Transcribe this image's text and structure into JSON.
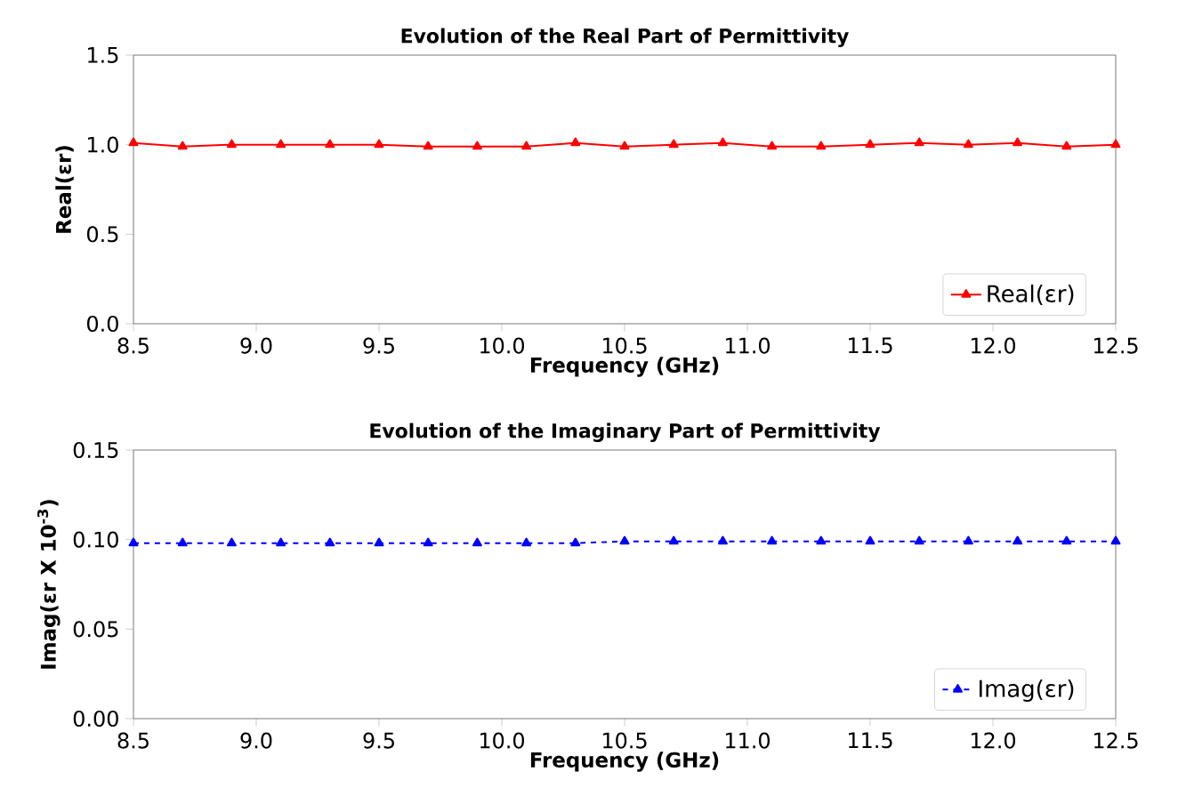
{
  "chart_data": [
    {
      "type": "line",
      "title": "Evolution of the Real Part of Permittivity",
      "xlabel": "Frequency (GHz)",
      "ylabel": "Real(εr)",
      "x": [
        8.5,
        8.7,
        8.9,
        9.1,
        9.3,
        9.5,
        9.7,
        9.9,
        10.1,
        10.3,
        10.5,
        10.7,
        10.9,
        11.1,
        11.3,
        11.5,
        11.7,
        11.9,
        12.1,
        12.3,
        12.5
      ],
      "series": [
        {
          "name": "Real(εr)",
          "color": "#ff0000",
          "values": [
            1.01,
            0.99,
            1.0,
            1.0,
            1.0,
            1.0,
            0.99,
            0.99,
            0.99,
            1.01,
            0.99,
            1.0,
            1.01,
            0.99,
            0.99,
            1.0,
            1.01,
            1.0,
            1.01,
            0.99,
            1.0
          ]
        }
      ],
      "marker": "triangle",
      "line_style": "solid",
      "legend": "bottom right",
      "xlim": [
        8.5,
        12.5
      ],
      "ylim": [
        0,
        1.5
      ],
      "xticks": [
        {
          "value": 8.5,
          "label": "8.5"
        },
        {
          "value": 9,
          "label": "9.0"
        },
        {
          "value": 9.5,
          "label": "9.5"
        },
        {
          "value": 10,
          "label": "10.0"
        },
        {
          "value": 10.5,
          "label": "10.5"
        },
        {
          "value": 11,
          "label": "11.0"
        },
        {
          "value": 11.5,
          "label": "11.5"
        },
        {
          "value": 12,
          "label": "12.0"
        },
        {
          "value": 12.5,
          "label": "12.5"
        }
      ],
      "yticks": [
        {
          "value": 0,
          "label": "0.0"
        },
        {
          "value": 0.5,
          "label": "0.5"
        },
        {
          "value": 1,
          "label": "1.0"
        },
        {
          "value": 1.5,
          "label": "1.5"
        }
      ]
    },
    {
      "type": "line",
      "title": "Evolution of the Imaginary Part of Permittivity",
      "xlabel": "Frequency (GHz)",
      "ylabel": "Imag(εr X 10$^{-3}$)",
      "x": [
        8.5,
        8.7,
        8.9,
        9.1,
        9.3,
        9.5,
        9.7,
        9.9,
        10.1,
        10.3,
        10.5,
        10.7,
        10.9,
        11.1,
        11.3,
        11.5,
        11.7,
        11.9,
        12.1,
        12.3,
        12.5
      ],
      "series": [
        {
          "name": "Imag(εr)",
          "color": "#0000ff",
          "values": [
            0.098,
            0.098,
            0.098,
            0.098,
            0.098,
            0.098,
            0.098,
            0.098,
            0.098,
            0.098,
            0.099,
            0.099,
            0.099,
            0.099,
            0.099,
            0.099,
            0.099,
            0.099,
            0.099,
            0.099,
            0.099
          ]
        }
      ],
      "marker": "triangle",
      "line_style": "dashed",
      "legend": "bottom right",
      "xlim": [
        8.5,
        12.5
      ],
      "ylim": [
        0,
        0.15
      ],
      "xticks": [
        {
          "value": 8.5,
          "label": "8.5"
        },
        {
          "value": 9,
          "label": "9.0"
        },
        {
          "value": 9.5,
          "label": "9.5"
        },
        {
          "value": 10,
          "label": "10.0"
        },
        {
          "value": 10.5,
          "label": "10.5"
        },
        {
          "value": 11,
          "label": "11.0"
        },
        {
          "value": 11.5,
          "label": "11.5"
        },
        {
          "value": 12,
          "label": "12.0"
        },
        {
          "value": 12.5,
          "label": "12.5"
        }
      ],
      "yticks": [
        {
          "value": 0,
          "label": "0.00"
        },
        {
          "value": 0.05,
          "label": "0.05"
        },
        {
          "value": 0.1,
          "label": "0.10"
        },
        {
          "value": 0.15,
          "label": "0.15"
        }
      ]
    }
  ]
}
